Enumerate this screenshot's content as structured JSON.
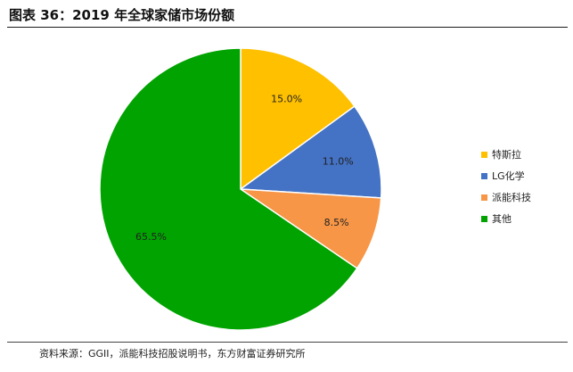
{
  "title": "图表 36：2019 年全球家储市场份额",
  "source": "资料来源：GGII，派能科技招股说明书，东方财富证券研究所",
  "chart_data": {
    "type": "pie",
    "title": "",
    "categories": [
      "特斯拉",
      "LG化学",
      "派能科技",
      "其他"
    ],
    "values": [
      15.0,
      11.0,
      8.5,
      65.5
    ],
    "value_labels": [
      "15.0%",
      "11.0%",
      "8.5%",
      "65.5%"
    ],
    "colors": [
      "#FFC000",
      "#4472C4",
      "#F79646",
      "#00A300"
    ],
    "legend_position": "right",
    "start_angle": "12 o'clock",
    "direction": "clockwise"
  }
}
